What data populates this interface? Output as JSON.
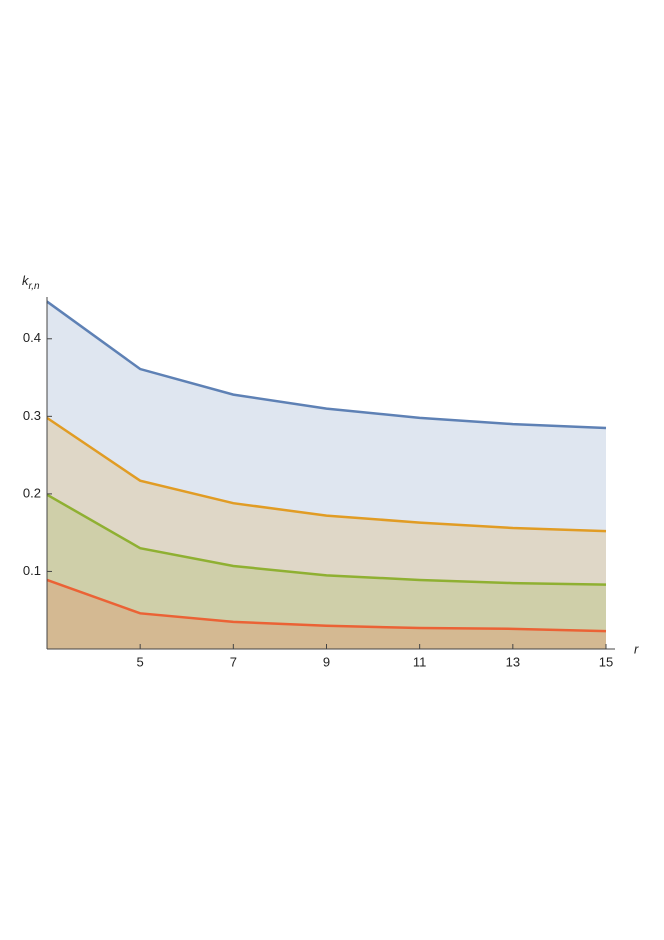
{
  "chart_data": {
    "type": "area",
    "ylabel": "k",
    "ylabel_subscript": "r,n",
    "xlabel": "r",
    "x": [
      3,
      5,
      7,
      9,
      11,
      13,
      15
    ],
    "series": [
      {
        "color": "#5e81b5",
        "values": [
          0.448,
          0.361,
          0.328,
          0.31,
          0.298,
          0.29,
          0.285
        ]
      },
      {
        "color": "#e19c24",
        "values": [
          0.298,
          0.217,
          0.188,
          0.172,
          0.163,
          0.156,
          0.152
        ]
      },
      {
        "color": "#8fb032",
        "values": [
          0.199,
          0.13,
          0.107,
          0.095,
          0.089,
          0.085,
          0.083
        ]
      },
      {
        "color": "#eb6235",
        "values": [
          0.089,
          0.046,
          0.035,
          0.03,
          0.027,
          0.026,
          0.023
        ]
      }
    ],
    "filled": true,
    "xlim": [
      3,
      15
    ],
    "ylim": [
      0,
      0.45
    ],
    "xticks": [
      5,
      7,
      9,
      11,
      13,
      15
    ],
    "yticks": [
      0.1,
      0.2,
      0.3,
      0.4
    ]
  }
}
